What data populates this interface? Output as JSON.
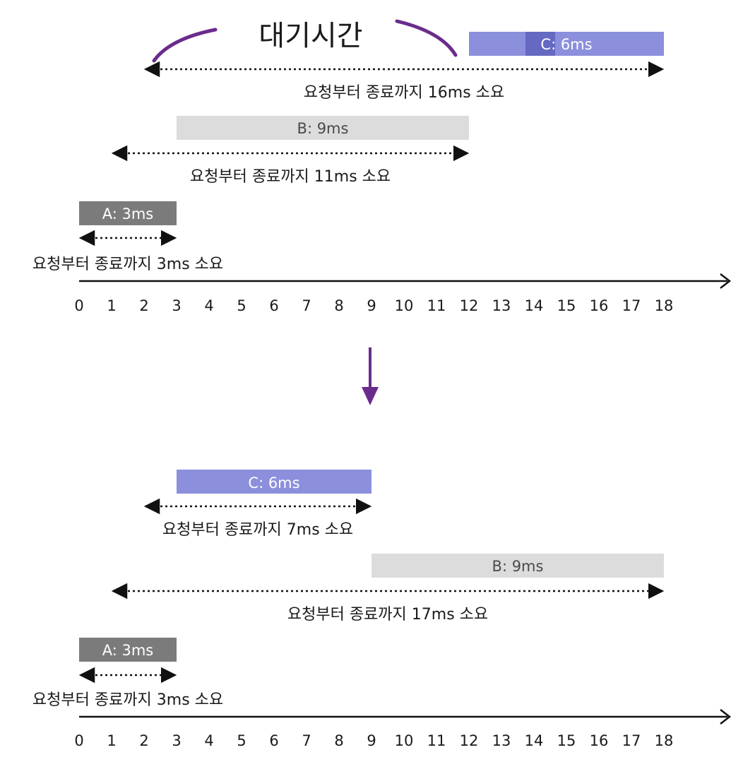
{
  "colors": {
    "bar_a": "#7b7b7b",
    "bar_b": "#dcdcdc",
    "bar_c": "#8b8fdc",
    "bar_c_highlight": "#6569c2",
    "annotation": "#6a2c8c",
    "line": "#111111",
    "text": "#1a1a1a",
    "label_light": "#ffffff",
    "label_dark": "#4a4a4a"
  },
  "axis_ticks": [
    "0",
    "1",
    "2",
    "3",
    "4",
    "5",
    "6",
    "7",
    "8",
    "9",
    "10",
    "11",
    "12",
    "13",
    "14",
    "15",
    "16",
    "17",
    "18"
  ],
  "transition_arrow": "down-arrow",
  "before": {
    "wait_annotation": "대기시간",
    "tasks": [
      {
        "id": "C",
        "label": "C: 6ms",
        "start": 12,
        "end": 18,
        "span_start": 2,
        "span_end": 18,
        "duration_text": "요청부터 종료까지 16ms 소요",
        "color_key": "bar_c"
      },
      {
        "id": "B",
        "label": "B: 9ms",
        "start": 3,
        "end": 12,
        "span_start": 1,
        "span_end": 12,
        "duration_text": "요청부터 종료까지 11ms 소요",
        "color_key": "bar_b"
      },
      {
        "id": "A",
        "label": "A: 3ms",
        "start": 0,
        "end": 3,
        "span_start": 0,
        "span_end": 3,
        "duration_text": "요청부터 종료까지 3ms 소요",
        "color_key": "bar_a"
      }
    ]
  },
  "after": {
    "tasks": [
      {
        "id": "C",
        "label": "C: 6ms",
        "start": 3,
        "end": 9,
        "span_start": 2,
        "span_end": 9,
        "duration_text": "요청부터 종료까지 7ms 소요",
        "color_key": "bar_c"
      },
      {
        "id": "B",
        "label": "B: 9ms",
        "start": 9,
        "end": 18,
        "span_start": 1,
        "span_end": 18,
        "duration_text": "요청부터 종료까지 17ms 소요",
        "color_key": "bar_b"
      },
      {
        "id": "A",
        "label": "A: 3ms",
        "start": 0,
        "end": 3,
        "span_start": 0,
        "span_end": 3,
        "duration_text": "요청부터 종료까지 3ms 소요",
        "color_key": "bar_a"
      }
    ]
  }
}
